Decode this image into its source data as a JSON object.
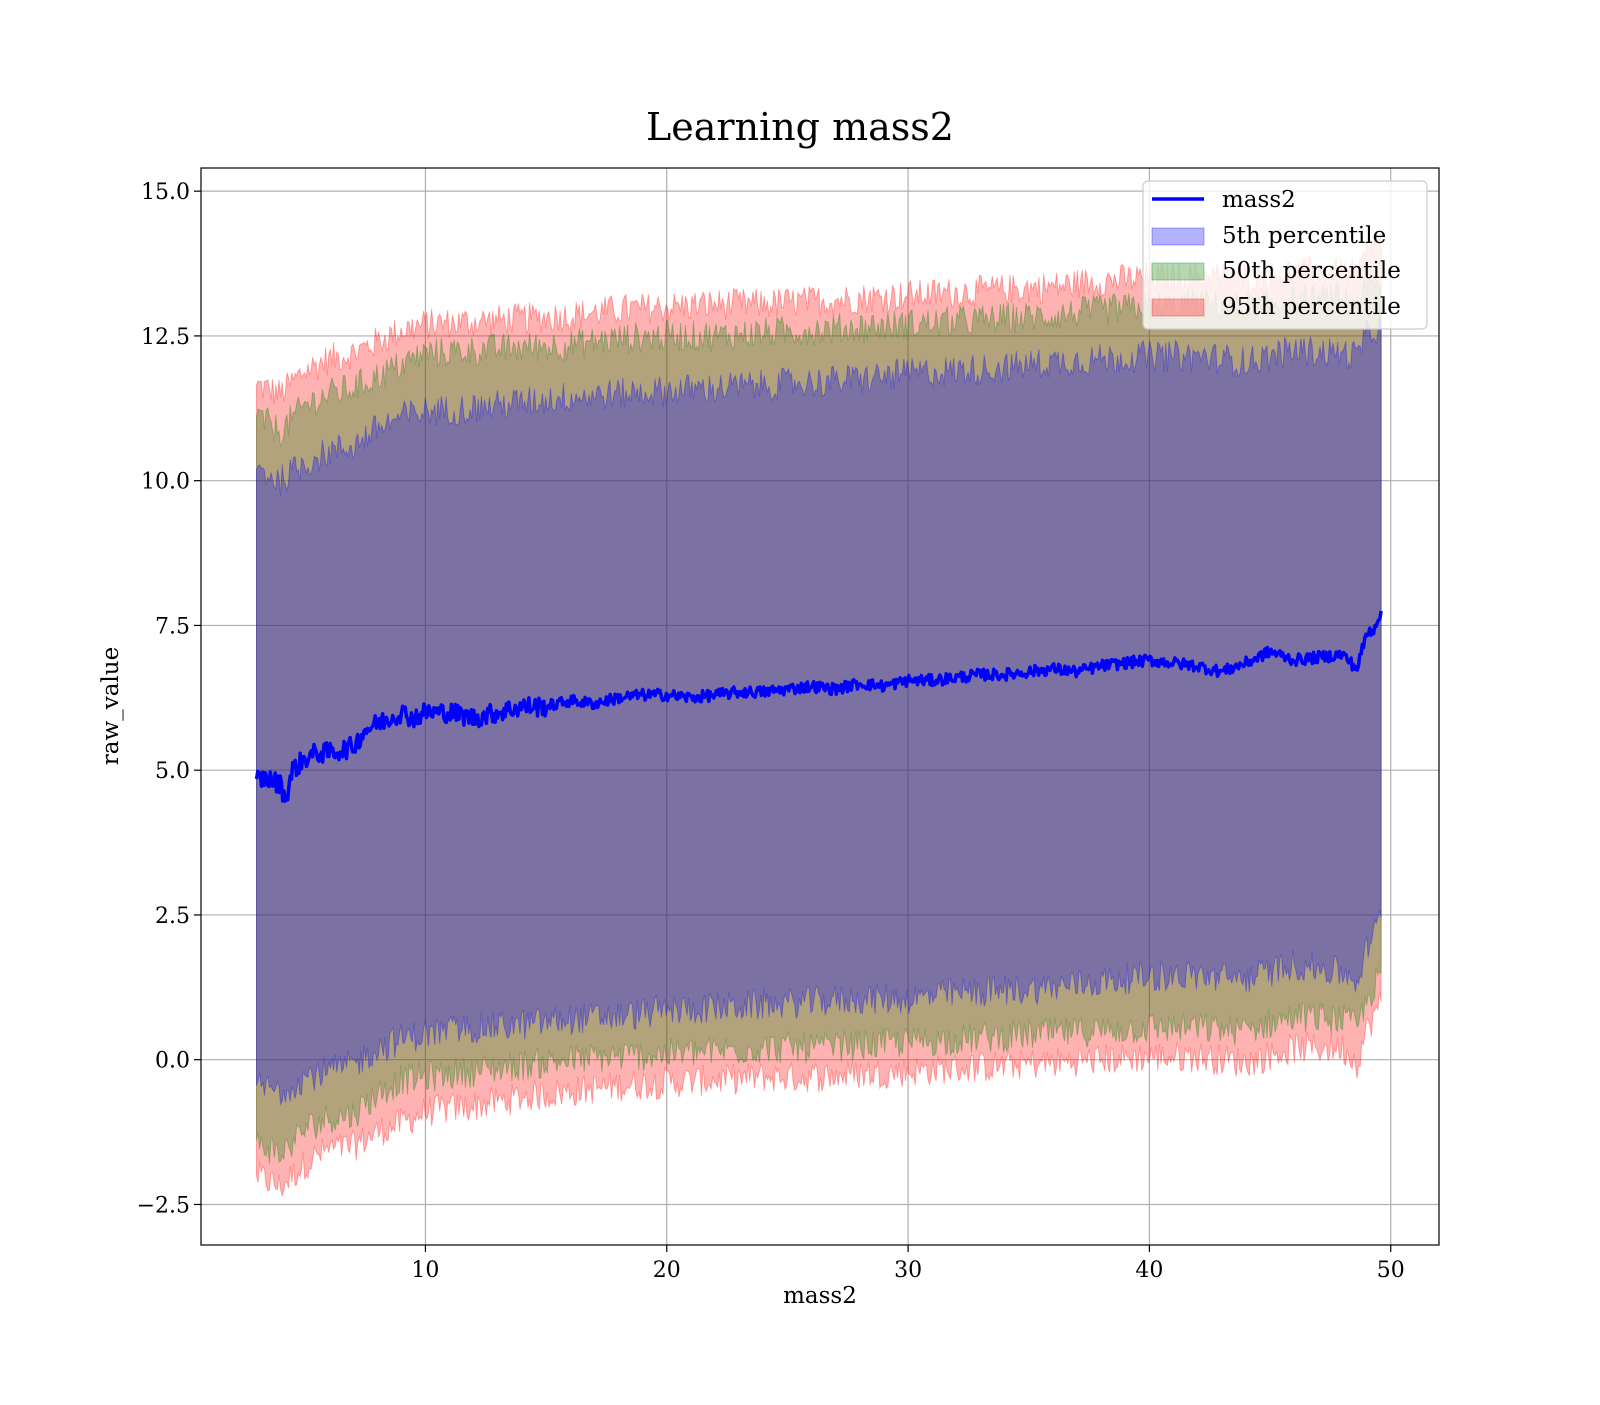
{
  "chart_data": {
    "type": "area",
    "title": "Learning mass2",
    "xlabel": "mass2",
    "ylabel": "raw_value",
    "xlim": [
      0.7,
      52.0
    ],
    "ylim": [
      -3.2,
      15.4
    ],
    "xticks": [
      10,
      20,
      30,
      40,
      50
    ],
    "xtick_labels": [
      "10",
      "20",
      "30",
      "40",
      "50"
    ],
    "yticks": [
      -2.5,
      0.0,
      2.5,
      5.0,
      7.5,
      10.0,
      12.5,
      15.0
    ],
    "ytick_labels": [
      "−2.5",
      "0.0",
      "2.5",
      "5.0",
      "7.5",
      "10.0",
      "12.5",
      "15.0"
    ],
    "grid": true,
    "legend_position": "top-right",
    "legend": [
      "mass2",
      "5th percentile",
      "50th percentile",
      "95th percentile"
    ],
    "x_range": [
      3.0,
      49.6
    ],
    "series": [
      {
        "name": "mass2",
        "kind": "line",
        "color": "#0000ff",
        "x": [
          3.0,
          3.5,
          4.0,
          4.2,
          4.5,
          5.0,
          5.5,
          6.0,
          6.5,
          7.0,
          7.5,
          8.0,
          8.5,
          9.0,
          9.5,
          10.0,
          11.0,
          12.0,
          13.0,
          14.0,
          15.0,
          16.0,
          17.0,
          18.0,
          19.0,
          20.0,
          21.0,
          22.0,
          23.0,
          24.0,
          25.0,
          26.0,
          27.0,
          28.0,
          29.0,
          30.0,
          31.0,
          32.0,
          33.0,
          34.0,
          35.0,
          36.0,
          37.0,
          38.0,
          39.0,
          40.0,
          41.0,
          42.0,
          43.0,
          44.0,
          45.0,
          46.0,
          47.0,
          48.0,
          48.6,
          49.0,
          49.3,
          49.6
        ],
        "y": [
          4.85,
          4.85,
          4.75,
          4.5,
          5.0,
          5.2,
          5.3,
          5.3,
          5.35,
          5.4,
          5.7,
          5.8,
          5.9,
          6.0,
          5.9,
          6.0,
          6.0,
          5.9,
          6.0,
          6.1,
          6.1,
          6.2,
          6.15,
          6.25,
          6.3,
          6.3,
          6.25,
          6.3,
          6.35,
          6.35,
          6.4,
          6.45,
          6.4,
          6.5,
          6.45,
          6.55,
          6.55,
          6.6,
          6.65,
          6.65,
          6.7,
          6.75,
          6.7,
          6.8,
          6.85,
          6.9,
          6.85,
          6.8,
          6.7,
          6.85,
          7.05,
          6.9,
          6.95,
          7.0,
          6.75,
          7.35,
          7.45,
          7.75
        ]
      },
      {
        "name": "5th percentile",
        "kind": "band",
        "color": "#0000ff",
        "x": [
          3.0,
          4.0,
          5.0,
          6.0,
          7.0,
          8.0,
          9.0,
          10.0,
          12.0,
          14.0,
          16.0,
          18.0,
          20.0,
          22.0,
          24.0,
          26.0,
          28.0,
          30.0,
          32.0,
          34.0,
          36.0,
          38.0,
          40.0,
          42.0,
          44.0,
          46.0,
          48.0,
          48.6,
          49.0,
          49.6
        ],
        "upper": [
          10.2,
          10.0,
          10.3,
          10.5,
          10.6,
          10.9,
          11.1,
          11.2,
          11.25,
          11.35,
          11.45,
          11.5,
          11.55,
          11.6,
          11.65,
          11.7,
          11.75,
          11.85,
          11.9,
          11.95,
          12.05,
          12.1,
          12.15,
          12.15,
          12.05,
          12.25,
          12.2,
          12.15,
          12.5,
          12.7
        ],
        "lower": [
          -0.45,
          -0.55,
          -0.3,
          -0.2,
          -0.1,
          0.2,
          0.35,
          0.45,
          0.55,
          0.6,
          0.7,
          0.75,
          0.85,
          0.9,
          0.95,
          1.0,
          1.05,
          1.05,
          1.15,
          1.2,
          1.25,
          1.35,
          1.45,
          1.45,
          1.4,
          1.65,
          1.5,
          1.35,
          1.9,
          2.45
        ]
      },
      {
        "name": "50th percentile",
        "kind": "band",
        "color": "#008000",
        "x": [
          3.0,
          4.0,
          5.0,
          6.0,
          7.0,
          8.0,
          9.0,
          10.0,
          12.0,
          14.0,
          16.0,
          18.0,
          20.0,
          22.0,
          24.0,
          26.0,
          28.0,
          30.0,
          32.0,
          34.0,
          36.0,
          38.0,
          40.0,
          42.0,
          44.0,
          46.0,
          48.0,
          48.6,
          49.0,
          49.6
        ],
        "upper": [
          11.1,
          10.85,
          11.3,
          11.5,
          11.6,
          11.8,
          12.0,
          12.2,
          12.25,
          12.3,
          12.35,
          12.45,
          12.5,
          12.5,
          12.55,
          12.6,
          12.65,
          12.7,
          12.75,
          12.8,
          12.85,
          12.95,
          13.0,
          13.05,
          13.0,
          13.1,
          13.15,
          13.1,
          13.3,
          13.4
        ],
        "lower": [
          -1.4,
          -1.65,
          -1.2,
          -1.0,
          -0.95,
          -0.6,
          -0.35,
          -0.3,
          -0.2,
          -0.1,
          0.0,
          0.05,
          0.1,
          0.15,
          0.2,
          0.2,
          0.25,
          0.3,
          0.35,
          0.4,
          0.45,
          0.5,
          0.55,
          0.55,
          0.5,
          0.75,
          0.7,
          0.55,
          1.0,
          1.5
        ]
      },
      {
        "name": "95th percentile",
        "kind": "band",
        "color": "#ff0000",
        "x": [
          3.0,
          4.0,
          5.0,
          6.0,
          7.0,
          8.0,
          9.0,
          10.0,
          12.0,
          14.0,
          16.0,
          18.0,
          20.0,
          22.0,
          24.0,
          26.0,
          28.0,
          30.0,
          32.0,
          34.0,
          36.0,
          38.0,
          40.0,
          42.0,
          44.0,
          46.0,
          48.0,
          48.6,
          49.0,
          49.6
        ],
        "upper": [
          11.65,
          11.5,
          11.9,
          12.1,
          12.2,
          12.4,
          12.6,
          12.7,
          12.75,
          12.8,
          12.85,
          12.95,
          13.0,
          13.05,
          13.05,
          13.1,
          13.15,
          13.2,
          13.25,
          13.3,
          13.35,
          13.45,
          13.5,
          13.55,
          13.5,
          13.6,
          13.6,
          13.55,
          13.9,
          14.3
        ],
        "lower": [
          -2.0,
          -2.2,
          -1.8,
          -1.55,
          -1.5,
          -1.25,
          -1.1,
          -0.9,
          -0.8,
          -0.65,
          -0.55,
          -0.45,
          -0.4,
          -0.35,
          -0.3,
          -0.3,
          -0.25,
          -0.2,
          -0.15,
          -0.1,
          -0.05,
          0.0,
          0.05,
          0.05,
          -0.05,
          0.2,
          0.2,
          -0.05,
          0.5,
          1.0
        ]
      }
    ]
  }
}
